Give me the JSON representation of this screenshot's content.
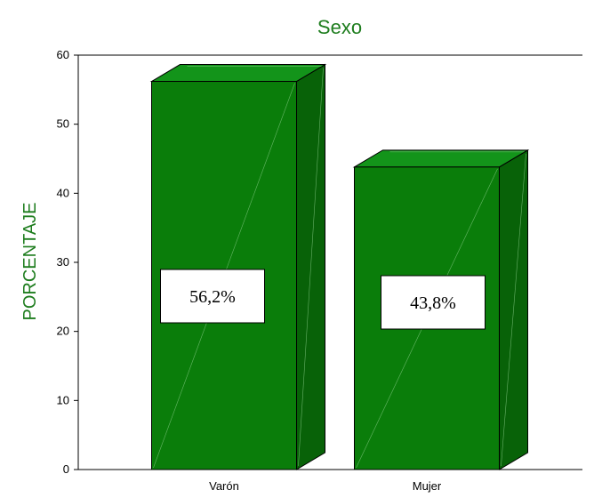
{
  "chart_data": {
    "type": "bar",
    "title": "Sexo",
    "xlabel": "",
    "ylabel": "PORCENTAJE",
    "categories": [
      "Varón",
      "Mujer"
    ],
    "values": [
      56.2,
      43.8
    ],
    "data_labels": [
      "56,2%",
      "43,8%"
    ],
    "yticks": [
      "0",
      "10",
      "20",
      "30",
      "40",
      "50",
      "60"
    ],
    "ylim": [
      0,
      60
    ],
    "grid": false,
    "style": "3d"
  },
  "colors": {
    "bar_front": "#0a7d0a",
    "bar_side": "#086208",
    "bar_top": "#13941a",
    "title": "#1e7d1e",
    "axis": "#000000"
  }
}
